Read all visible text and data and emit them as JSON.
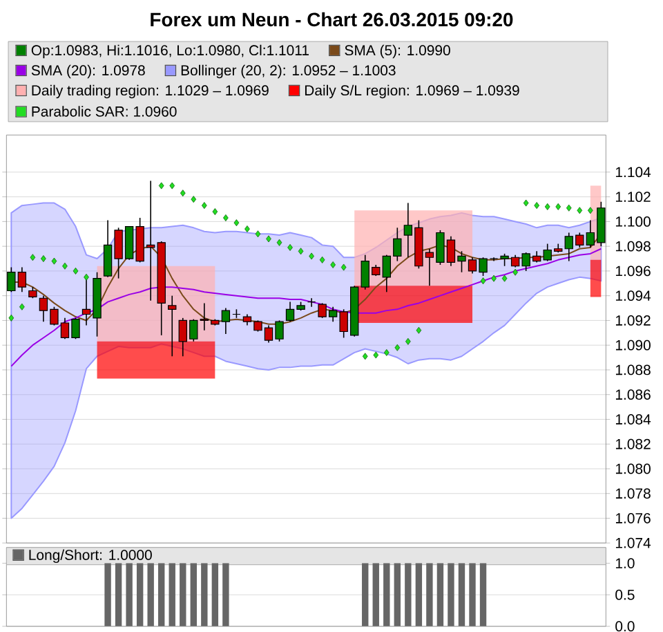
{
  "chart_data": [
    {
      "type": "candlestick",
      "title": "Forex um Neun - Chart 26.03.2015 09:20",
      "categories": [
        null,
        null,
        null,
        null,
        null,
        null,
        null,
        null,
        null,
        null,
        null,
        null,
        null,
        null,
        null,
        null,
        null,
        null,
        null,
        null,
        null,
        null,
        null,
        null,
        null,
        null,
        null,
        null,
        null,
        null,
        null,
        null,
        null,
        null,
        null,
        null,
        null,
        null,
        null,
        null,
        null,
        null,
        null,
        null,
        null,
        null,
        null,
        null,
        null,
        null,
        null,
        null,
        null,
        null,
        null,
        null
      ],
      "series": [
        {
          "name": "Op:1.0983, Hi:1.1016, Lo:1.0980, Cl:1.1011",
          "type": "candlestick",
          "colors": [
            "#008000",
            "#cc0000",
            "#cc0000",
            "#cc0000",
            "#cc0000",
            "#cc0000",
            "#008000",
            "#cc0000",
            "#008000",
            "#008000",
            "#cc0000",
            "#008000",
            "#cc0000",
            "#cc0000",
            "#cc0000",
            "#cc0000",
            "#cc0000",
            "#008000",
            "#cc0000",
            "#cc0000",
            "#008000",
            "#000000",
            "#cc0000",
            "#cc0000",
            "#cc0000",
            "#008000",
            "#008000",
            "#008000",
            "#000000",
            "#cc0000",
            "#008000",
            "#cc0000",
            "#008000",
            "#008000",
            "#cc0000",
            "#008000",
            "#008000",
            "#008000",
            "#cc0000",
            "#cc0000",
            "#008000",
            "#cc0000",
            "#008000",
            "#cc0000",
            "#008000",
            "#000000",
            "#008000",
            "#cc0000",
            "#008000",
            "#cc0000",
            "#008000",
            "#cc0000",
            "#008000",
            "#cc0000",
            "#008000",
            "#008000"
          ],
          "ohlc": [
            [
              1.0944,
              1.0963,
              1.0943,
              1.0959
            ],
            [
              1.0959,
              1.0963,
              1.0943,
              1.0947
            ],
            [
              1.0944,
              1.0947,
              1.0938,
              1.0939
            ],
            [
              1.0938,
              1.094,
              1.0919,
              1.0928
            ],
            [
              1.0929,
              1.0931,
              1.0916,
              1.0917
            ],
            [
              1.0918,
              1.0922,
              1.0905,
              1.0906
            ],
            [
              1.0906,
              1.0922,
              1.0905,
              1.0921
            ],
            [
              1.0929,
              1.0956,
              1.0916,
              1.0925
            ],
            [
              1.0922,
              1.0959,
              1.0907,
              1.0954
            ],
            [
              1.0956,
              1.1001,
              1.0955,
              1.0981
            ],
            [
              1.0993,
              1.0995,
              1.0954,
              1.097
            ],
            [
              1.097,
              1.0996,
              1.0969,
              1.0996
            ],
            [
              1.0996,
              1.1003,
              1.0967,
              1.0968
            ],
            [
              1.0981,
              1.1033,
              1.0936,
              1.0979
            ],
            [
              1.0983,
              1.0984,
              1.0908,
              1.0934
            ],
            [
              1.0932,
              1.094,
              1.0891,
              1.0929
            ],
            [
              1.092,
              1.0922,
              1.0891,
              1.0903
            ],
            [
              1.0905,
              1.0921,
              1.0903,
              1.092
            ],
            [
              1.0921,
              1.0934,
              1.0912,
              1.092
            ],
            [
              1.092,
              1.0921,
              1.0916,
              1.0917
            ],
            [
              1.0919,
              1.093,
              1.0909,
              1.0928
            ],
            [
              1.0925,
              1.0929,
              1.0922,
              1.0925
            ],
            [
              1.0923,
              1.0925,
              1.0916,
              1.0919
            ],
            [
              1.0919,
              1.092,
              1.0911,
              1.0912
            ],
            [
              1.0914,
              1.0916,
              1.0902,
              1.0904
            ],
            [
              1.0905,
              1.092,
              1.0903,
              1.0919
            ],
            [
              1.092,
              1.0935,
              1.0919,
              1.0929
            ],
            [
              1.0929,
              1.0935,
              1.0928,
              1.0932
            ],
            [
              1.0935,
              1.0938,
              1.0931,
              1.0935
            ],
            [
              1.0933,
              1.0934,
              1.0922,
              1.0923
            ],
            [
              1.0923,
              1.0931,
              1.0919,
              1.0928
            ],
            [
              1.0927,
              1.0929,
              1.0906,
              1.0911
            ],
            [
              1.0908,
              1.0948,
              1.0907,
              1.0947
            ],
            [
              1.0947,
              1.0973,
              1.0945,
              1.0968
            ],
            [
              1.0963,
              1.0965,
              1.0956,
              1.0957
            ],
            [
              1.0955,
              1.0973,
              1.0943,
              1.0972
            ],
            [
              1.0972,
              1.0995,
              1.0968,
              1.0986
            ],
            [
              1.0989,
              1.1015,
              1.0971,
              1.0997
            ],
            [
              1.0995,
              1.1001,
              1.0962,
              1.0964
            ],
            [
              1.0975,
              1.0978,
              1.0948,
              1.0971
            ],
            [
              1.0967,
              1.0993,
              1.0965,
              1.0991
            ],
            [
              1.0985,
              1.0988,
              1.0964,
              1.0967
            ],
            [
              1.0968,
              1.0976,
              1.0959,
              1.0972
            ],
            [
              1.0969,
              1.0971,
              1.0958,
              1.096
            ],
            [
              1.0959,
              1.0971,
              1.0956,
              1.097
            ],
            [
              1.097,
              1.0971,
              1.0968,
              1.097
            ],
            [
              1.097,
              1.0974,
              1.0964,
              1.0972
            ],
            [
              1.0971,
              1.0973,
              1.0963,
              1.0964
            ],
            [
              1.0964,
              1.0975,
              1.096,
              1.0974
            ],
            [
              1.0972,
              1.0976,
              1.0967,
              1.0968
            ],
            [
              1.0969,
              1.0982,
              1.0968,
              1.0977
            ],
            [
              1.0978,
              1.0982,
              1.0975,
              1.0976
            ],
            [
              1.0978,
              1.0991,
              1.0968,
              1.0988
            ],
            [
              1.0989,
              1.0991,
              1.0979,
              1.0981
            ],
            [
              1.0981,
              1.1001,
              1.0979,
              1.0991
            ],
            [
              1.0983,
              1.1016,
              1.098,
              1.1011
            ]
          ]
        },
        {
          "name": "SMA (5): 1.0990",
          "type": "line",
          "color": "#7a4a1a",
          "values": [
            1.0951,
            1.0951,
            1.0947,
            1.0941,
            1.0934,
            1.0928,
            1.0923,
            1.092,
            1.0929,
            1.0947,
            1.0962,
            1.0973,
            1.0978,
            1.098,
            1.0971,
            1.0954,
            1.094,
            1.0929,
            1.0922,
            1.0919,
            1.092,
            1.0921,
            1.092,
            1.0919,
            1.0917,
            1.0917,
            1.0919,
            1.0922,
            1.0926,
            1.0929,
            1.0928,
            1.0926,
            1.0929,
            1.0937,
            1.0947,
            1.0954,
            1.0964,
            1.0971,
            1.0976,
            1.0978,
            1.0981,
            1.0979,
            1.0974,
            1.0971,
            1.0969,
            1.0969,
            1.097,
            1.097,
            1.0971,
            1.0971,
            1.0972,
            1.0973,
            1.0974,
            1.0978,
            1.0979,
            1.099
          ]
        },
        {
          "name": "SMA (20): 1.0978",
          "type": "line",
          "color": "#9a00e6",
          "values": [
            1.0883,
            1.0892,
            1.09,
            1.0906,
            1.0912,
            1.0919,
            1.0922,
            1.0926,
            1.0929,
            1.0935,
            1.0938,
            1.0941,
            1.0943,
            1.0946,
            1.0947,
            1.0947,
            1.0946,
            1.0945,
            1.0943,
            1.0942,
            1.0941,
            1.094,
            1.0939,
            1.0938,
            1.0938,
            1.0938,
            1.0937,
            1.0937,
            1.0935,
            1.0933,
            1.0929,
            1.0927,
            1.0926,
            1.0926,
            1.0926,
            1.0928,
            1.0929,
            1.0932,
            1.0934,
            1.0937,
            1.094,
            1.0943,
            1.0946,
            1.0949,
            1.0952,
            1.0955,
            1.0957,
            1.096,
            1.0962,
            1.0964,
            1.0966,
            1.0969,
            1.0971,
            1.0973,
            1.0974,
            1.0978
          ]
        },
        {
          "name": "Bollinger (20, 2): 1.0952 – 1.1003",
          "type": "area",
          "color": "#9999ff",
          "values": [
            null,
            null,
            null,
            null,
            null,
            null,
            null,
            null,
            null,
            null,
            null,
            null,
            null,
            null,
            null,
            null,
            null,
            null,
            null,
            null,
            null,
            null,
            null,
            null,
            null,
            null,
            null,
            null,
            null,
            null,
            null,
            null,
            null,
            null,
            null,
            null,
            null,
            null,
            null,
            null,
            null,
            null,
            null,
            null,
            null,
            null,
            null,
            null,
            null,
            null,
            null,
            null,
            null,
            null,
            null,
            null
          ],
          "upper": [
            1.1007,
            1.1013,
            1.1014,
            1.1015,
            1.1015,
            1.101,
            1.0996,
            1.0973,
            1.097,
            1.0978,
            1.0992,
            1.0993,
            1.0994,
            1.0995,
            1.0995,
            1.0996,
            1.0997,
            1.0995,
            1.0992,
            1.0991,
            1.0992,
            1.0992,
            1.0991,
            1.099,
            1.099,
            1.0989,
            1.0991,
            1.0989,
            1.0987,
            1.0981,
            1.098,
            1.0971,
            1.0971,
            1.0974,
            1.0979,
            1.0985,
            1.0991,
            1.0996,
            1.0999,
            1.1002,
            1.1004,
            1.1005,
            1.1007,
            1.1005,
            1.1004,
            1.1004,
            1.1002,
            1.1,
            1.0998,
            1.0995,
            1.0997,
            1.0997,
            1.0995,
            1.0997,
            1.1,
            1.1003
          ],
          "lower": [
            1.076,
            1.0768,
            1.0779,
            1.079,
            1.0802,
            1.0821,
            1.0847,
            1.0881,
            1.0891,
            1.0895,
            1.0899,
            1.0898,
            1.0898,
            1.0898,
            1.0901,
            1.0899,
            1.0897,
            1.0894,
            1.0891,
            1.0891,
            1.0887,
            1.0885,
            1.0883,
            1.0881,
            1.088,
            1.0882,
            1.0882,
            1.0883,
            1.0883,
            1.0884,
            1.0884,
            1.0889,
            1.0894,
            1.0897,
            1.0895,
            1.0893,
            1.089,
            1.0885,
            1.0888,
            1.0889,
            1.0889,
            1.0888,
            1.0891,
            1.0897,
            1.0903,
            1.091,
            1.0916,
            1.0925,
            1.0934,
            1.0942,
            1.0947,
            1.095,
            1.0953,
            1.0955,
            1.0954,
            1.0952
          ]
        },
        {
          "name": "Daily trading region: 1.1029 – 1.0969",
          "type": "area",
          "color": "#ffb0b0",
          "values": [
            null,
            null,
            null,
            null,
            null,
            null,
            null,
            null,
            null,
            null,
            null,
            null,
            null,
            null,
            null,
            null,
            null,
            null,
            null,
            null,
            null,
            null,
            null,
            null,
            null,
            null,
            null,
            null,
            null,
            null,
            null,
            null,
            null,
            null,
            null,
            null,
            null,
            null,
            null,
            null,
            null,
            null,
            null,
            null,
            null,
            null,
            null,
            null,
            null,
            null,
            null,
            null,
            null,
            null,
            null,
            null
          ],
          "upper": [
            null,
            null,
            null,
            null,
            null,
            null,
            null,
            null,
            1.0964,
            1.0964,
            1.0964,
            1.0964,
            1.0964,
            1.0964,
            1.0964,
            1.0964,
            1.0964,
            1.0964,
            1.0964,
            1.0964,
            null,
            null,
            null,
            null,
            null,
            null,
            null,
            null,
            null,
            null,
            null,
            null,
            1.1009,
            1.1009,
            1.1009,
            1.1009,
            1.1009,
            1.1009,
            1.1009,
            1.1009,
            1.1009,
            1.1009,
            1.1009,
            1.1009,
            null,
            null,
            null,
            null,
            null,
            null,
            null,
            null,
            null,
            null,
            1.1029,
            1.1029
          ],
          "lower": [
            null,
            null,
            null,
            null,
            null,
            null,
            null,
            null,
            1.0903,
            1.0903,
            1.0903,
            1.0903,
            1.0903,
            1.0903,
            1.0903,
            1.0903,
            1.0903,
            1.0903,
            1.0903,
            1.0903,
            null,
            null,
            null,
            null,
            null,
            null,
            null,
            null,
            null,
            null,
            null,
            null,
            1.0948,
            1.0948,
            1.0948,
            1.0948,
            1.0948,
            1.0948,
            1.0948,
            1.0948,
            1.0948,
            1.0948,
            1.0948,
            1.0948,
            null,
            null,
            null,
            null,
            null,
            null,
            null,
            null,
            null,
            null,
            1.0969,
            1.0969
          ]
        },
        {
          "name": "Daily S/L region: 1.0969 – 1.0939",
          "type": "area",
          "color": "#ff0000",
          "values": [
            null,
            null,
            null,
            null,
            null,
            null,
            null,
            null,
            null,
            null,
            null,
            null,
            null,
            null,
            null,
            null,
            null,
            null,
            null,
            null,
            null,
            null,
            null,
            null,
            null,
            null,
            null,
            null,
            null,
            null,
            null,
            null,
            null,
            null,
            null,
            null,
            null,
            null,
            null,
            null,
            null,
            null,
            null,
            null,
            null,
            null,
            null,
            null,
            null,
            null,
            null,
            null,
            null,
            null,
            null,
            null
          ],
          "upper": [
            null,
            null,
            null,
            null,
            null,
            null,
            null,
            null,
            1.0903,
            1.0903,
            1.0903,
            1.0903,
            1.0903,
            1.0903,
            1.0903,
            1.0903,
            1.0903,
            1.0903,
            1.0903,
            1.0903,
            null,
            null,
            null,
            null,
            null,
            null,
            null,
            null,
            null,
            null,
            null,
            null,
            1.0948,
            1.0948,
            1.0948,
            1.0948,
            1.0948,
            1.0948,
            1.0948,
            1.0948,
            1.0948,
            1.0948,
            1.0948,
            1.0948,
            null,
            null,
            null,
            null,
            null,
            null,
            null,
            null,
            null,
            null,
            1.0969,
            1.0969
          ],
          "lower": [
            null,
            null,
            null,
            null,
            null,
            null,
            null,
            null,
            1.0873,
            1.0873,
            1.0873,
            1.0873,
            1.0873,
            1.0873,
            1.0873,
            1.0873,
            1.0873,
            1.0873,
            1.0873,
            1.0873,
            null,
            null,
            null,
            null,
            null,
            null,
            null,
            null,
            null,
            null,
            null,
            null,
            1.0918,
            1.0918,
            1.0918,
            1.0918,
            1.0918,
            1.0918,
            1.0918,
            1.0918,
            1.0918,
            1.0918,
            1.0918,
            1.0918,
            null,
            null,
            null,
            null,
            null,
            null,
            null,
            null,
            null,
            null,
            1.0939,
            1.0939
          ]
        },
        {
          "name": "Parabolic SAR: 1.0960",
          "type": "scatter",
          "color": "#22dd22",
          "marker": "diamond",
          "values": [
            1.0922,
            1.0931,
            1.0971,
            1.097,
            1.0968,
            1.0964,
            1.096,
            1.0955,
            null,
            null,
            null,
            null,
            null,
            null,
            1.1029,
            1.1029,
            1.1023,
            1.1018,
            1.1013,
            1.1008,
            1.1003,
            1.0999,
            1.0994,
            1.099,
            1.0986,
            1.0983,
            1.0979,
            1.0976,
            1.0972,
            1.0969,
            1.0965,
            1.0963,
            null,
            1.0891,
            1.0892,
            1.0894,
            1.0898,
            1.0903,
            1.0912,
            null,
            null,
            null,
            null,
            null,
            1.0952,
            1.0954,
            1.0954,
            1.0959,
            1.1015,
            1.1013,
            1.1012,
            1.1012,
            1.1011,
            1.1009,
            1.1009,
            null
          ]
        }
      ],
      "ylim": [
        1.074,
        1.107
      ],
      "yticks": [
        1.074,
        1.076,
        1.078,
        {
          "value": 1.08,
          "label": "1.080"
        },
        1.082,
        1.084,
        1.086,
        1.088,
        {
          "value": 1.09,
          "label": "1.090"
        },
        1.092,
        1.094,
        1.096,
        1.098,
        {
          "value": 1.1,
          "label": "1.100"
        },
        1.102,
        1.104
      ],
      "grid": "y",
      "legend": "top",
      "tick_labels": "y"
    },
    {
      "type": "bar",
      "categories": [
        null,
        null,
        null,
        null,
        null,
        null,
        null,
        null,
        null,
        null,
        null,
        null,
        null,
        null,
        null,
        null,
        null,
        null,
        null,
        null,
        null,
        null,
        null,
        null,
        null,
        null,
        null,
        null,
        null,
        null,
        null,
        null,
        null,
        null,
        null,
        null,
        null,
        null,
        null,
        null,
        null,
        null,
        null,
        null,
        null,
        null,
        null,
        null,
        null,
        null,
        null,
        null,
        null,
        null,
        null,
        null
      ],
      "series": [
        {
          "name": "Long/Short: 1.0000",
          "color": "#666666",
          "values": [
            0,
            0,
            0,
            0,
            0,
            0,
            0,
            0,
            0,
            1,
            1,
            1,
            1,
            1,
            1,
            1,
            1,
            1,
            1,
            1,
            1,
            0,
            0,
            0,
            0,
            0,
            0,
            0,
            0,
            0,
            0,
            0,
            0,
            1,
            1,
            1,
            1,
            1,
            1,
            1,
            1,
            1,
            1,
            1,
            1,
            0,
            0,
            0,
            0,
            0,
            0,
            0,
            0,
            0,
            0,
            0
          ]
        }
      ],
      "ylim": [
        0,
        1.25
      ],
      "yticks": [
        {
          "value": 0,
          "label": "0.0"
        },
        0.5,
        {
          "value": 1,
          "label": "1.0"
        }
      ],
      "grid": "y",
      "legend": "top left",
      "tick_labels": "y"
    }
  ]
}
